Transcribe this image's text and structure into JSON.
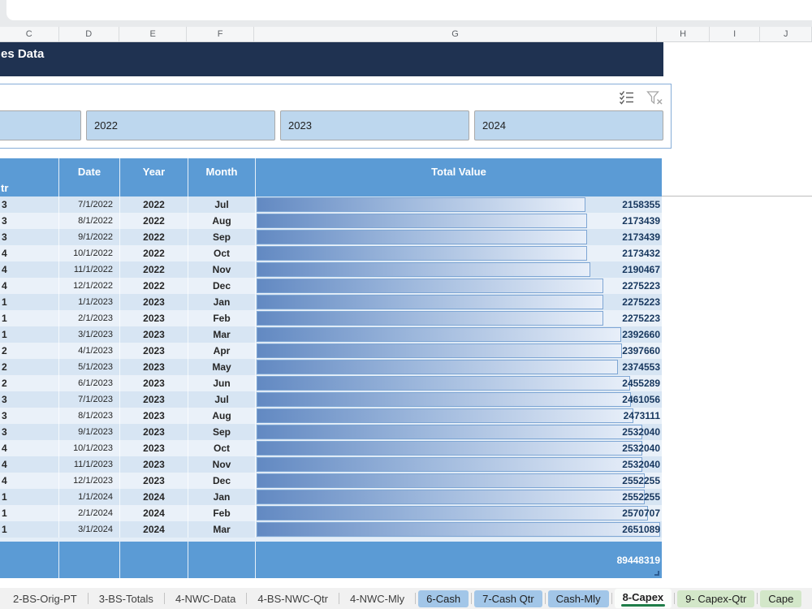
{
  "app": {
    "title": "es Data"
  },
  "columns": {
    "letters": [
      "C",
      "D",
      "E",
      "F",
      "G",
      "H",
      "I",
      "J"
    ]
  },
  "slicer": {
    "icons": {
      "multi_select": "multi-select-icon",
      "clear_filter": "clear-filter-icon"
    },
    "buttons": [
      {
        "label": ""
      },
      {
        "label": "2022"
      },
      {
        "label": "2023"
      },
      {
        "label": "2024"
      }
    ]
  },
  "table": {
    "headers": {
      "qtr": "tr",
      "date": "Date",
      "year": "Year",
      "month": "Month",
      "value": "Total Value"
    },
    "max_value": 2651089,
    "rows": [
      {
        "qtr": "3",
        "date": "7/1/2022",
        "year": "2022",
        "month": "Jul",
        "value": 2158355
      },
      {
        "qtr": "3",
        "date": "8/1/2022",
        "year": "2022",
        "month": "Aug",
        "value": 2173439
      },
      {
        "qtr": "3",
        "date": "9/1/2022",
        "year": "2022",
        "month": "Sep",
        "value": 2173439
      },
      {
        "qtr": "4",
        "date": "10/1/2022",
        "year": "2022",
        "month": "Oct",
        "value": 2173432
      },
      {
        "qtr": "4",
        "date": "11/1/2022",
        "year": "2022",
        "month": "Nov",
        "value": 2190467
      },
      {
        "qtr": "4",
        "date": "12/1/2022",
        "year": "2022",
        "month": "Dec",
        "value": 2275223
      },
      {
        "qtr": "1",
        "date": "1/1/2023",
        "year": "2023",
        "month": "Jan",
        "value": 2275223
      },
      {
        "qtr": "1",
        "date": "2/1/2023",
        "year": "2023",
        "month": "Feb",
        "value": 2275223
      },
      {
        "qtr": "1",
        "date": "3/1/2023",
        "year": "2023",
        "month": "Mar",
        "value": 2392660
      },
      {
        "qtr": "2",
        "date": "4/1/2023",
        "year": "2023",
        "month": "Apr",
        "value": 2397660
      },
      {
        "qtr": "2",
        "date": "5/1/2023",
        "year": "2023",
        "month": "May",
        "value": 2374553
      },
      {
        "qtr": "2",
        "date": "6/1/2023",
        "year": "2023",
        "month": "Jun",
        "value": 2455289
      },
      {
        "qtr": "3",
        "date": "7/1/2023",
        "year": "2023",
        "month": "Jul",
        "value": 2461056
      },
      {
        "qtr": "3",
        "date": "8/1/2023",
        "year": "2023",
        "month": "Aug",
        "value": 2473111
      },
      {
        "qtr": "3",
        "date": "9/1/2023",
        "year": "2023",
        "month": "Sep",
        "value": 2532040
      },
      {
        "qtr": "4",
        "date": "10/1/2023",
        "year": "2023",
        "month": "Oct",
        "value": 2532040
      },
      {
        "qtr": "4",
        "date": "11/1/2023",
        "year": "2023",
        "month": "Nov",
        "value": 2532040
      },
      {
        "qtr": "4",
        "date": "12/1/2023",
        "year": "2023",
        "month": "Dec",
        "value": 2552255
      },
      {
        "qtr": "1",
        "date": "1/1/2024",
        "year": "2024",
        "month": "Jan",
        "value": 2552255
      },
      {
        "qtr": "1",
        "date": "2/1/2024",
        "year": "2024",
        "month": "Feb",
        "value": 2570707
      },
      {
        "qtr": "1",
        "date": "3/1/2024",
        "year": "2024",
        "month": "Mar",
        "value": 2651089
      }
    ],
    "total": "89448319"
  },
  "tabs": [
    {
      "label": "2-BS-Orig-PT",
      "style": "plain"
    },
    {
      "label": "3-BS-Totals",
      "style": "plain"
    },
    {
      "label": "4-NWC-Data",
      "style": "plain"
    },
    {
      "label": "4-BS-NWC-Qtr",
      "style": "plain"
    },
    {
      "label": "4-NWC-Mly",
      "style": "plain"
    },
    {
      "label": "6-Cash",
      "style": "blue"
    },
    {
      "label": "7-Cash Qtr",
      "style": "blue"
    },
    {
      "label": "Cash-Mly",
      "style": "blue"
    },
    {
      "label": "8-Capex",
      "style": "active"
    },
    {
      "label": "9- Capex-Qtr",
      "style": "green"
    },
    {
      "label": "Cape",
      "style": "green"
    }
  ],
  "colors": {
    "header_blue": "#5B9BD5",
    "band_dark": "#D7E5F3",
    "band_light": "#EAF1F9",
    "bar_border": "#7EA6D4",
    "value_text": "#17375E",
    "title_bg": "#1F3251",
    "slicer_button_fill": "#BDD7EE",
    "tab_blue": "#A2C6E8",
    "tab_green": "#D3E7C9",
    "active_tab_underline": "#1E7D48"
  }
}
